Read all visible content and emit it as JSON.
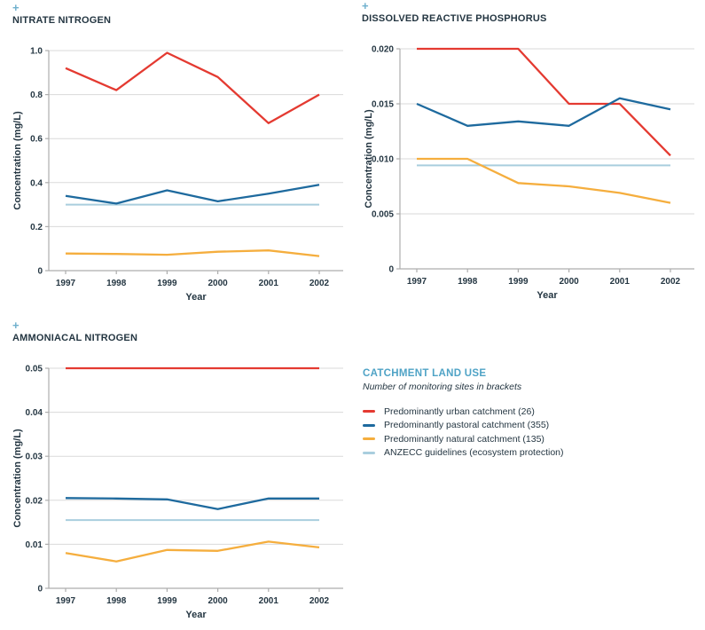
{
  "icons": {
    "plus": "+"
  },
  "colors": {
    "urban": "#E43A31",
    "pastoral": "#1E6A9E",
    "natural": "#F5AE3E",
    "guideline": "#A9CEDE",
    "title_text": "#243642",
    "legend_title": "#4FA3C6",
    "grid": "#DADADA",
    "axis": "#ADADAD"
  },
  "legend": {
    "title": "CATCHMENT LAND USE",
    "subtitle": "Number of monitoring sites in brackets",
    "items": [
      {
        "label": "Predominantly urban catchment (26)",
        "color_key": "urban"
      },
      {
        "label": "Predominantly pastoral catchment (355)",
        "color_key": "pastoral"
      },
      {
        "label": "Predominantly natural catchment (135)",
        "color_key": "natural"
      },
      {
        "label": "ANZECC guidelines (ecosystem protection)",
        "color_key": "guideline"
      }
    ]
  },
  "chart_data": [
    {
      "type": "line",
      "title": "NITRATE NITROGEN",
      "xlabel": "Year",
      "ylabel": "Concentration (mg/L)",
      "x": [
        1997,
        1998,
        1999,
        2000,
        2001,
        2002
      ],
      "x_tick_labels": [
        "1997",
        "1998",
        "1999",
        "2000",
        "2001",
        "2002"
      ],
      "ylim": [
        0,
        1.0
      ],
      "y_ticks": [
        0,
        0.2,
        0.4,
        0.6,
        0.8,
        1.0
      ],
      "y_tick_labels": [
        "0",
        "0.2",
        "0.4",
        "0.6",
        "0.8",
        "1.0"
      ],
      "grid": true,
      "legend_position": "shared-bottom-right",
      "series": [
        {
          "name": "ANZECC guidelines (ecosystem protection)",
          "color_key": "guideline",
          "values": [
            0.3,
            0.3,
            0.3,
            0.3,
            0.3,
            0.3
          ]
        },
        {
          "name": "Predominantly urban catchment (26)",
          "color_key": "urban",
          "values": [
            0.92,
            0.82,
            0.99,
            0.88,
            0.67,
            0.8
          ]
        },
        {
          "name": "Predominantly natural catchment (135)",
          "color_key": "natural",
          "values": [
            0.078,
            0.076,
            0.072,
            0.086,
            0.092,
            0.066
          ]
        },
        {
          "name": "Predominantly pastoral catchment (355)",
          "color_key": "pastoral",
          "values": [
            0.34,
            0.305,
            0.365,
            0.315,
            0.35,
            0.39
          ]
        }
      ]
    },
    {
      "type": "line",
      "title": "DISSOLVED REACTIVE PHOSPHORUS",
      "xlabel": "Year",
      "ylabel": "Concentration (mg/L)",
      "x": [
        1997,
        1998,
        1999,
        2000,
        2001,
        2002
      ],
      "x_tick_labels": [
        "1997",
        "1998",
        "1999",
        "2000",
        "2001",
        "2002"
      ],
      "ylim": [
        0,
        0.02
      ],
      "y_ticks": [
        0,
        0.005,
        0.01,
        0.015,
        0.02
      ],
      "y_tick_labels": [
        "0",
        "0.005",
        "0.010",
        "0.015",
        "0.020"
      ],
      "grid": true,
      "legend_position": "shared-bottom-right",
      "series": [
        {
          "name": "ANZECC guidelines (ecosystem protection)",
          "color_key": "guideline",
          "values": [
            0.0094,
            0.0094,
            0.0094,
            0.0094,
            0.0094,
            0.0094
          ]
        },
        {
          "name": "Predominantly urban catchment (26)",
          "color_key": "urban",
          "values": [
            0.02,
            0.02,
            0.02,
            0.015,
            0.015,
            0.0103
          ]
        },
        {
          "name": "Predominantly natural catchment (135)",
          "color_key": "natural",
          "values": [
            0.01,
            0.01,
            0.0078,
            0.0075,
            0.0069,
            0.006
          ]
        },
        {
          "name": "Predominantly pastoral catchment (355)",
          "color_key": "pastoral",
          "values": [
            0.015,
            0.013,
            0.0134,
            0.013,
            0.0155,
            0.0145
          ]
        }
      ]
    },
    {
      "type": "line",
      "title": "AMMONIACAL NITROGEN",
      "xlabel": "Year",
      "ylabel": "Concentration (mg/L)",
      "x": [
        1997,
        1998,
        1999,
        2000,
        2001,
        2002
      ],
      "x_tick_labels": [
        "1997",
        "1998",
        "1999",
        "2000",
        "2001",
        "2002"
      ],
      "ylim": [
        0,
        0.05
      ],
      "y_ticks": [
        0,
        0.01,
        0.02,
        0.03,
        0.04,
        0.05
      ],
      "y_tick_labels": [
        "0",
        "0.01",
        "0.02",
        "0.03",
        "0.04",
        "0.05"
      ],
      "grid": true,
      "legend_position": "shared-bottom-right",
      "series": [
        {
          "name": "ANZECC guidelines (ecosystem protection)",
          "color_key": "guideline",
          "values": [
            0.0155,
            0.0155,
            0.0155,
            0.0155,
            0.0155,
            0.0155
          ]
        },
        {
          "name": "Predominantly urban catchment (26)",
          "color_key": "urban",
          "values": [
            0.05,
            0.05,
            0.05,
            0.05,
            0.05,
            0.05
          ]
        },
        {
          "name": "Predominantly natural catchment (135)",
          "color_key": "natural",
          "values": [
            0.008,
            0.0061,
            0.0087,
            0.0085,
            0.0106,
            0.0093
          ]
        },
        {
          "name": "Predominantly pastoral catchment (355)",
          "color_key": "pastoral",
          "values": [
            0.0205,
            0.0204,
            0.0202,
            0.018,
            0.0204,
            0.0204
          ]
        }
      ]
    }
  ]
}
